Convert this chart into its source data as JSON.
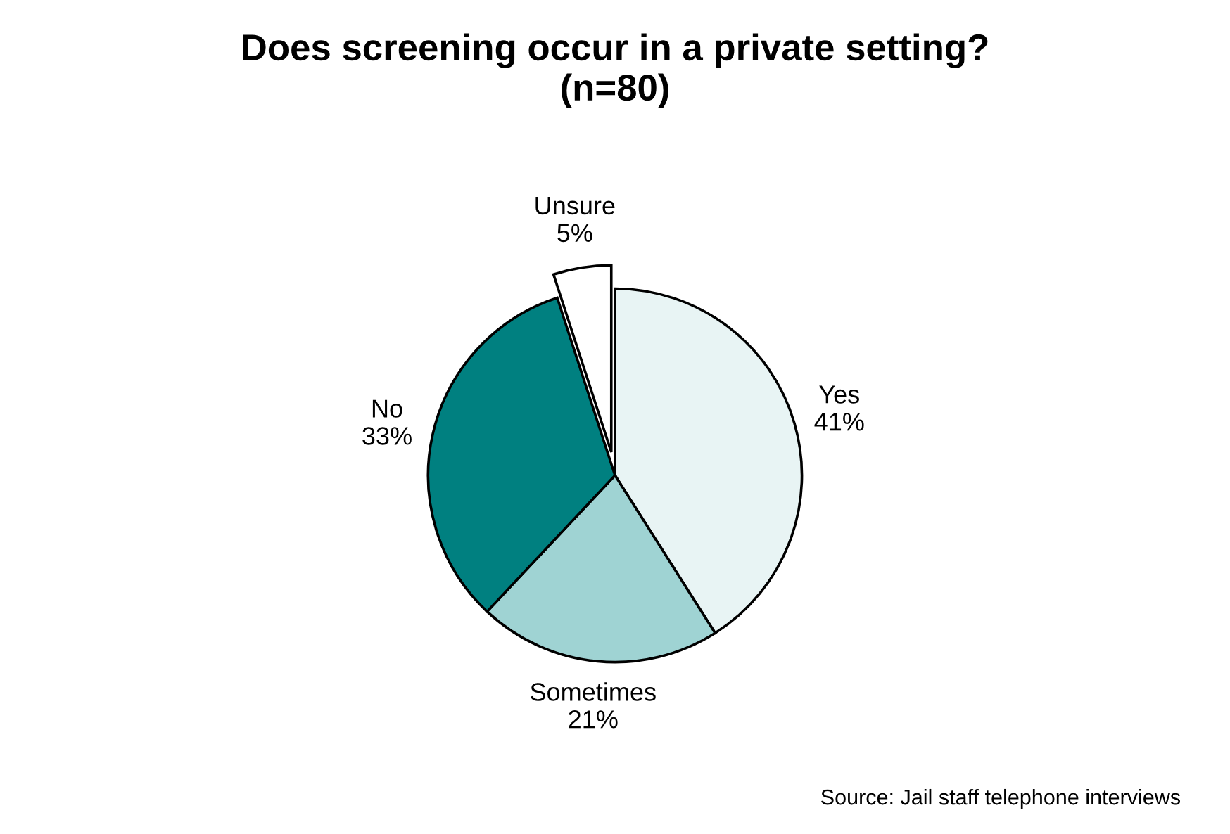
{
  "chart_data": {
    "type": "pie",
    "title": "Does screening occur in a private setting?\n(n=80)",
    "categories": [
      "Yes",
      "Sometimes",
      "No",
      "Unsure"
    ],
    "values": [
      41,
      21,
      33,
      5
    ],
    "value_labels": [
      "41%",
      "21%",
      "33%",
      "5%"
    ],
    "colors": [
      "#e8f4f4",
      "#9fd3d3",
      "#008080",
      "#ffffff"
    ],
    "annotations": [
      "Source: Jail staff telephone interviews"
    ]
  }
}
